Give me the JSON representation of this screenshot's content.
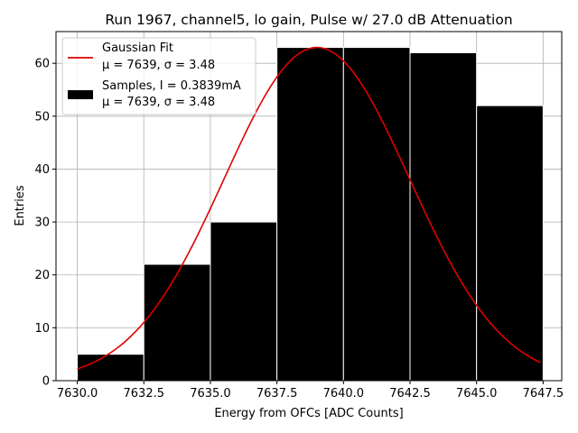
{
  "chart_data": {
    "type": "bar",
    "title": "Run 1967, channel5, lo gain, Pulse w/ 27.0 dB Attenuation",
    "xlabel": "Energy from OFCs [ADC Counts]",
    "ylabel": "Entries",
    "xlim": [
      7629.2,
      7648.2
    ],
    "ylim": [
      0,
      66
    ],
    "xticks": [
      7630.0,
      7632.5,
      7635.0,
      7637.5,
      7640.0,
      7642.5,
      7645.0,
      7647.5
    ],
    "xtick_labels": [
      "7630.0",
      "7632.5",
      "7635.0",
      "7637.5",
      "7640.0",
      "7642.5",
      "7645.0",
      "7647.5"
    ],
    "yticks": [
      0,
      10,
      20,
      30,
      40,
      50,
      60
    ],
    "ytick_labels": [
      "0",
      "10",
      "20",
      "30",
      "40",
      "50",
      "60"
    ],
    "grid": true,
    "legend_position": "top-left",
    "bins": [
      {
        "x0": 7630.0,
        "x1": 7632.48,
        "value": 5
      },
      {
        "x0": 7632.48,
        "x1": 7634.96,
        "value": 22
      },
      {
        "x0": 7634.96,
        "x1": 7637.44,
        "value": 30
      },
      {
        "x0": 7637.44,
        "x1": 7639.92,
        "value": 63
      },
      {
        "x0": 7639.92,
        "x1": 7642.4,
        "value": 63
      },
      {
        "x0": 7642.4,
        "x1": 7644.88,
        "value": 62
      },
      {
        "x0": 7644.88,
        "x1": 7647.36,
        "value": 52
      }
    ],
    "series": [
      {
        "name": "Samples, I = 0.3839mA",
        "kind": "histogram",
        "color": "#000000",
        "stats": "μ = 7639, σ = 3.48",
        "bins": [
          {
            "x0": 7630.0,
            "x1": 7632.5,
            "value": 5
          },
          {
            "x0": 7632.5,
            "x1": 7635.0,
            "value": 22
          },
          {
            "x0": 7635.0,
            "x1": 7637.5,
            "value": 30
          },
          {
            "x0": 7637.5,
            "x1": 7640.0,
            "value": 63
          },
          {
            "x0": 7640.0,
            "x1": 7642.5,
            "value": 63
          },
          {
            "x0": 7642.5,
            "x1": 7645.0,
            "value": 62
          },
          {
            "x0": 7645.0,
            "x1": 7647.5,
            "value": 52
          }
        ]
      },
      {
        "name": "Gaussian Fit",
        "kind": "line",
        "color": "#e00000",
        "stats": "μ = 7639, σ = 3.48",
        "mu": 7639.0,
        "sigma": 3.48,
        "amplitude": 63.0,
        "x_range": [
          7630.0,
          7647.4
        ]
      }
    ]
  }
}
